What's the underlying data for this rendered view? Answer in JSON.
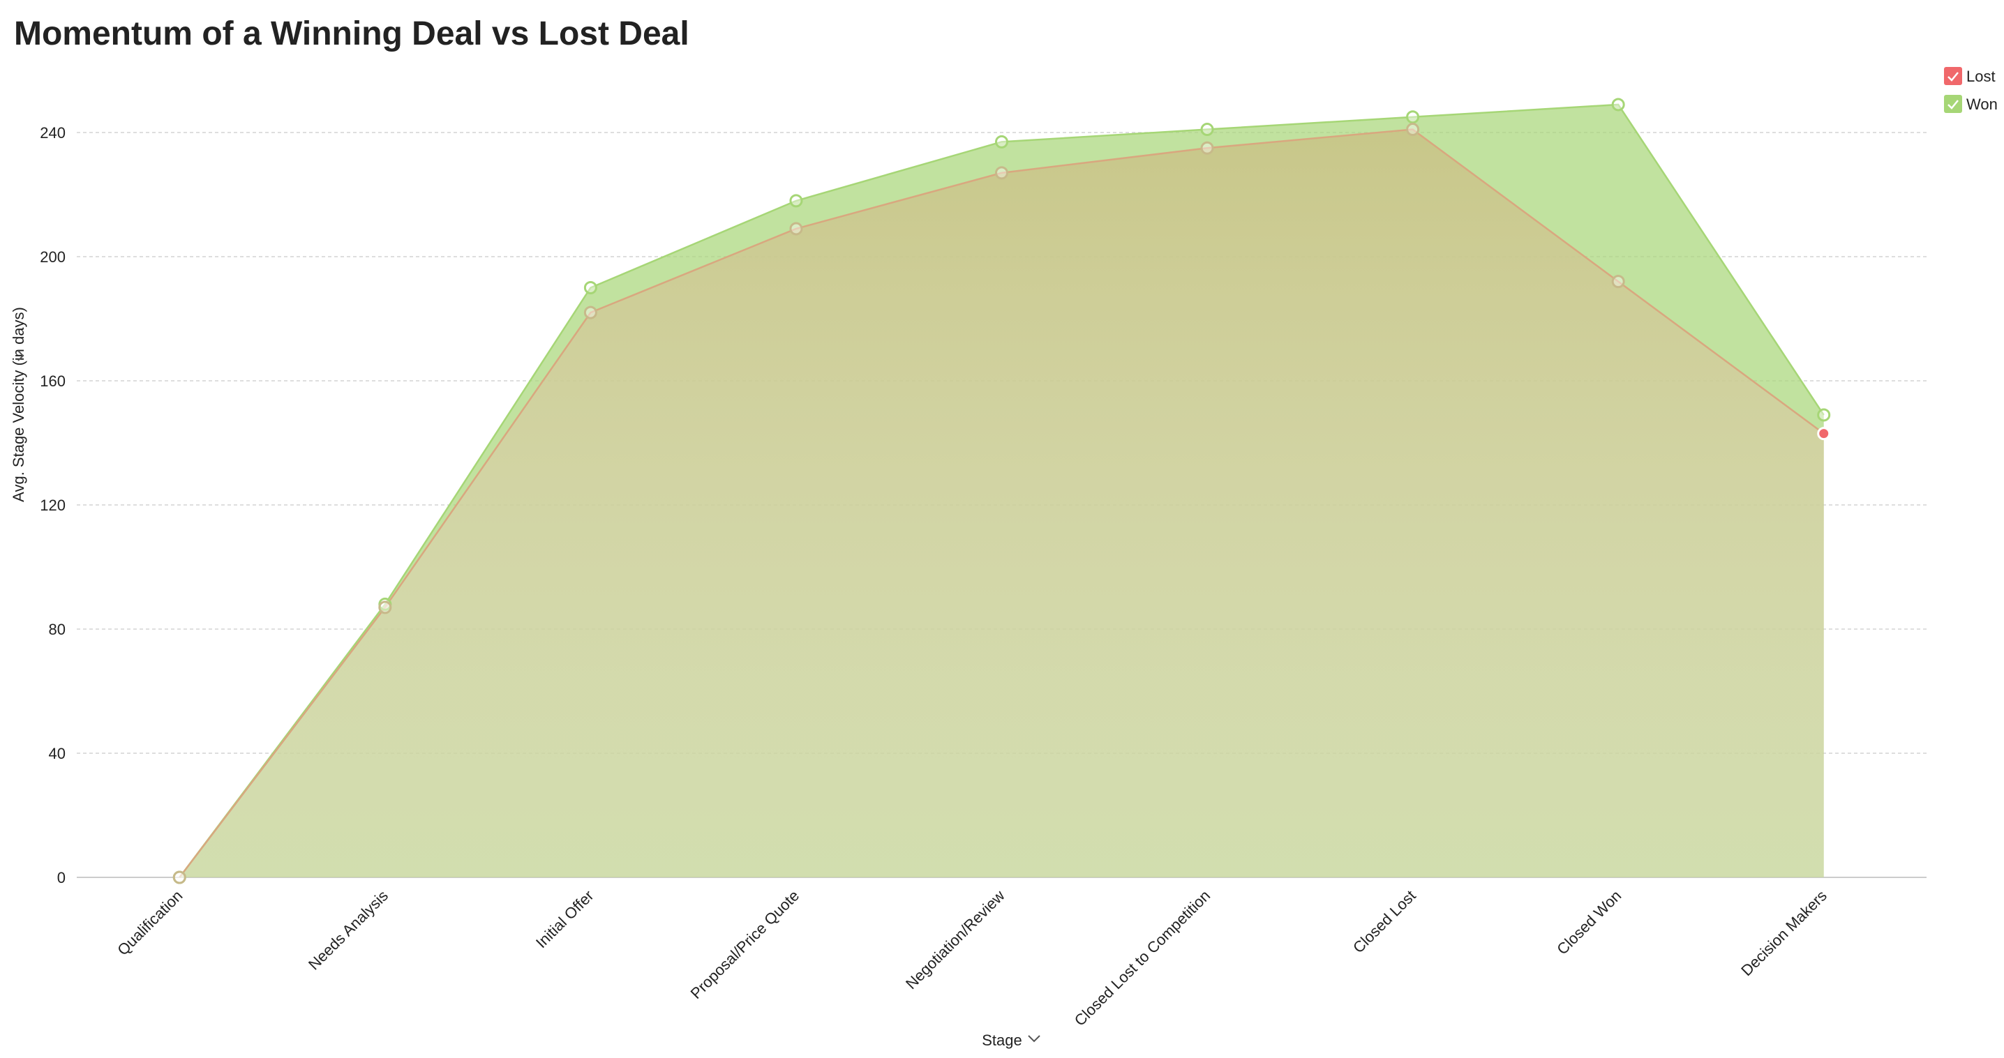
{
  "chart_data": {
    "type": "area",
    "title": "Momentum of a Winning Deal vs Lost Deal",
    "x_label": "Stage",
    "y_label": "Avg. Stage Velocity (in days)",
    "categories": [
      "Qualification",
      "Needs Analysis",
      "Initial Offer",
      "Proposal/Price Quote",
      "Negotiation/Review",
      "Closed Lost to Competition",
      "Closed Lost",
      "Closed Won",
      "Decision Makers"
    ],
    "series": [
      {
        "name": "Won",
        "color": "#a6d676",
        "values": [
          0,
          88,
          190,
          218,
          237,
          241,
          245,
          249,
          149
        ]
      },
      {
        "name": "Lost",
        "color": "#f0686b",
        "values": [
          0,
          87,
          182,
          209,
          227,
          235,
          241,
          192,
          143
        ]
      }
    ],
    "ylim": [
      0,
      260
    ],
    "yticks": [
      0,
      40,
      80,
      120,
      160,
      200,
      240
    ],
    "grid": true,
    "legend": "top-right"
  }
}
